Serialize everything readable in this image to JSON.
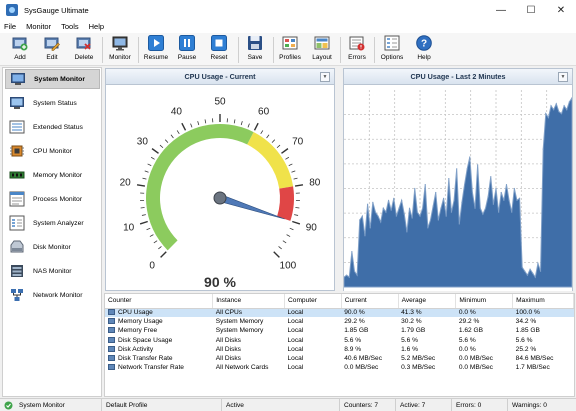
{
  "window": {
    "title": "SysGauge Ultimate",
    "minimize": "—",
    "maximize": "☐",
    "close": "✕"
  },
  "menu": [
    "File",
    "Monitor",
    "Tools",
    "Help"
  ],
  "toolbar": {
    "add": "Add",
    "edit": "Edit",
    "delete": "Delete",
    "monitor": "Monitor",
    "resume": "Resume",
    "pause": "Pause",
    "reset": "Reset",
    "save": "Save",
    "profiles": "Profiles",
    "layout": "Layout",
    "errors": "Errors",
    "options": "Options",
    "help": "Help"
  },
  "sidebar": {
    "items": [
      "System Monitor",
      "System Status",
      "Extended Status",
      "CPU Monitor",
      "Memory Monitor",
      "Process Monitor",
      "System Analyzer",
      "Disk Monitor",
      "NAS Monitor",
      "Network Monitor"
    ],
    "active_index": 0
  },
  "gauge": {
    "title": "CPU Usage - Current",
    "value": 90,
    "value_label": "90 %",
    "ticks": [
      "0",
      "10",
      "20",
      "30",
      "40",
      "50",
      "60",
      "70",
      "80",
      "90",
      "100"
    ],
    "colors": {
      "green": "#8ccb5e",
      "yellow": "#f0e24a",
      "red": "#e04646",
      "needle": "#4f79b7"
    }
  },
  "history": {
    "title": "CPU Usage - Last 2 Minutes",
    "fill_color": "#3f6ea8",
    "line_color": "#7f9fc7",
    "ylim": [
      0,
      100
    ],
    "values": [
      5,
      6,
      5,
      18,
      8,
      6,
      34,
      36,
      26,
      42,
      30,
      43,
      38,
      36,
      33,
      40,
      38,
      44,
      39,
      45,
      36,
      40,
      44,
      37,
      28,
      40,
      35,
      50,
      38,
      36,
      40,
      52,
      30,
      34,
      41,
      48,
      34,
      40,
      45,
      36,
      55,
      38,
      44,
      60,
      32,
      43,
      52,
      60,
      66,
      48,
      40,
      62,
      40,
      37,
      40,
      46,
      56,
      42,
      50,
      38,
      48,
      44,
      52,
      44,
      38,
      50,
      44,
      45,
      10,
      8,
      6,
      9,
      7,
      5,
      12,
      8,
      70,
      88,
      86,
      92,
      90,
      93,
      89,
      88,
      92,
      90,
      94,
      96
    ]
  },
  "table": {
    "columns": [
      "Counter",
      "Instance",
      "Computer",
      "Current",
      "Average",
      "Minimum",
      "Maximum"
    ],
    "rows": [
      [
        "CPU Usage",
        "All CPUs",
        "Local",
        "90.0 %",
        "41.3 %",
        "0.0 %",
        "100.0 %"
      ],
      [
        "Memory Usage",
        "System Memory",
        "Local",
        "29.2 %",
        "30.2 %",
        "29.2 %",
        "34.2 %"
      ],
      [
        "Memory Free",
        "System Memory",
        "Local",
        "1.85 GB",
        "1.79 GB",
        "1.62 GB",
        "1.85 GB"
      ],
      [
        "Disk Space Usage",
        "All Disks",
        "Local",
        "5.6 %",
        "5.6 %",
        "5.6 %",
        "5.6 %"
      ],
      [
        "Disk Activity",
        "All Disks",
        "Local",
        "8.9 %",
        "1.6 %",
        "0.0 %",
        "25.2 %"
      ],
      [
        "Disk Transfer Rate",
        "All Disks",
        "Local",
        "40.6 MB/Sec",
        "5.2 MB/Sec",
        "0.0 MB/Sec",
        "84.6 MB/Sec"
      ],
      [
        "Network Transfer Rate",
        "All Network Cards",
        "Local",
        "0.0 MB/Sec",
        "0.3 MB/Sec",
        "0.0 MB/Sec",
        "1.7 MB/Sec"
      ]
    ],
    "selected_row": 0
  },
  "status": {
    "monitor": "System Monitor",
    "profile": "Default Profile",
    "state": "Active",
    "counters": "Counters: 7",
    "active": "Active: 7",
    "errors": "Errors: 0",
    "warnings": "Warnings: 0"
  }
}
